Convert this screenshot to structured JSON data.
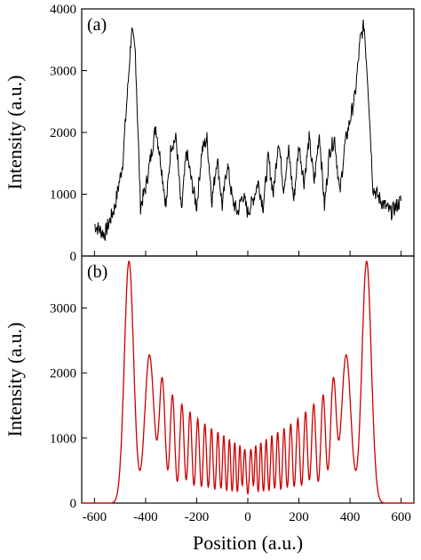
{
  "chart_data": [
    {
      "panel": "(a)",
      "type": "line",
      "ylabel": "Intensity (a.u.)",
      "ylim": [
        0,
        4000
      ],
      "yticks": [
        0,
        1000,
        2000,
        3000,
        4000
      ],
      "xlim": [
        -650,
        650
      ],
      "series": [
        {
          "color": "#000000",
          "x": [
            -600,
            -560,
            -520,
            -490,
            -470,
            -455,
            -440,
            -420,
            -400,
            -380,
            -360,
            -340,
            -320,
            -300,
            -280,
            -260,
            -240,
            -220,
            -200,
            -180,
            -160,
            -140,
            -120,
            -100,
            -80,
            -60,
            -40,
            -20,
            0,
            20,
            40,
            60,
            80,
            100,
            120,
            140,
            160,
            180,
            200,
            220,
            240,
            260,
            280,
            300,
            320,
            340,
            360,
            380,
            400,
            420,
            440,
            455,
            470,
            490,
            520,
            560,
            600
          ],
          "y": [
            500,
            350,
            800,
            1500,
            2700,
            3650,
            3300,
            800,
            1100,
            1600,
            2100,
            1500,
            800,
            1800,
            1900,
            700,
            1700,
            1200,
            800,
            1700,
            1900,
            900,
            1600,
            800,
            1500,
            900,
            700,
            1000,
            700,
            900,
            1200,
            800,
            1600,
            1000,
            1900,
            1100,
            1700,
            900,
            1800,
            1200,
            1900,
            1200,
            2000,
            800,
            1700,
            1900,
            1000,
            1800,
            2200,
            2600,
            3500,
            3750,
            2800,
            1100,
            900,
            700,
            900
          ]
        }
      ]
    },
    {
      "panel": "(b)",
      "type": "line",
      "xlabel": "Position (a.u.)",
      "ylabel": "Intensity (a.u.)",
      "ylim": [
        0,
        3800
      ],
      "yticks": [
        0,
        1000,
        2000,
        3000
      ],
      "xlim": [
        -650,
        650
      ],
      "xticks": [
        -600,
        -400,
        -200,
        0,
        200,
        400,
        600
      ],
      "series": [
        {
          "color": "#cc0000",
          "peaks_x": [
            -465,
            -385,
            -335,
            -295,
            -258,
            -226,
            -196,
            -168,
            -142,
            -117,
            -94,
            -72,
            -51,
            -31,
            -12,
            12,
            31,
            51,
            72,
            94,
            117,
            142,
            168,
            196,
            226,
            258,
            295,
            335,
            385,
            465
          ],
          "peaks_y": [
            3720,
            2280,
            1880,
            1660,
            1520,
            1400,
            1300,
            1220,
            1150,
            1090,
            1040,
            980,
            930,
            880,
            830,
            830,
            880,
            930,
            980,
            1040,
            1090,
            1150,
            1220,
            1300,
            1400,
            1520,
            1660,
            1880,
            2280,
            3720
          ]
        }
      ]
    }
  ]
}
